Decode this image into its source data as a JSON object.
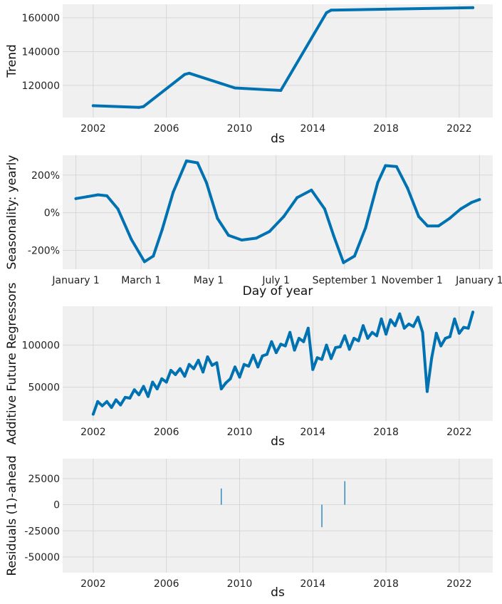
{
  "colors": {
    "series": "#0072b2",
    "background": "#f0f0f0",
    "grid": "#d4d4d4"
  },
  "chart_data": [
    {
      "type": "line",
      "title": "",
      "xlabel": "ds",
      "ylabel": "Trend",
      "grid": true,
      "x_type": "date",
      "xlim": [
        "2000-05-01",
        "2023-11-01"
      ],
      "ylim": [
        101000,
        168000
      ],
      "x_ticks": [
        {
          "value": "2002-01-01",
          "label": "2002"
        },
        {
          "value": "2006-01-01",
          "label": "2006"
        },
        {
          "value": "2010-01-01",
          "label": "2010"
        },
        {
          "value": "2014-01-01",
          "label": "2014"
        },
        {
          "value": "2018-01-01",
          "label": "2018"
        },
        {
          "value": "2022-01-01",
          "label": "2022"
        }
      ],
      "y_ticks": [
        {
          "value": 120000,
          "label": "120000"
        },
        {
          "value": 140000,
          "label": "140000"
        },
        {
          "value": 160000,
          "label": "160000"
        }
      ],
      "series": [
        {
          "x": [
            "2002-01-01",
            "2004-07-01",
            "2004-10-01",
            "2007-01-01",
            "2007-04-01",
            "2009-10-01",
            "2012-04-01",
            "2014-10-01",
            "2015-01-01",
            "2022-10-01"
          ],
          "values": [
            108000,
            107000,
            107500,
            126500,
            127200,
            118500,
            117000,
            163000,
            164500,
            166000
          ]
        }
      ]
    },
    {
      "type": "line",
      "title": "",
      "xlabel": "Day of year",
      "ylabel": "Seasonality: yearly",
      "grid": true,
      "x_unit": "day of year",
      "xlim": [
        -12,
        377
      ],
      "ylim": [
        -3.0,
        3.05
      ],
      "x_ticks": [
        {
          "value": 0,
          "label": "January 1"
        },
        {
          "value": 59,
          "label": "March 1"
        },
        {
          "value": 120,
          "label": "May 1"
        },
        {
          "value": 181,
          "label": "July 1"
        },
        {
          "value": 243,
          "label": "September 1"
        },
        {
          "value": 304,
          "label": "November 1"
        },
        {
          "value": 365,
          "label": "January 1"
        }
      ],
      "y_ticks": [
        {
          "value": -2,
          "label": "-200%"
        },
        {
          "value": 0,
          "label": "0%"
        },
        {
          "value": 2,
          "label": "200%"
        }
      ],
      "series": [
        {
          "x": [
            0,
            10,
            20,
            28,
            38,
            50,
            62,
            70,
            78,
            88,
            100,
            110,
            118,
            128,
            138,
            150,
            163,
            175,
            188,
            200,
            213,
            225,
            233,
            242,
            252,
            262,
            273,
            280,
            290,
            300,
            310,
            318,
            328,
            338,
            348,
            358,
            365
          ],
          "values": [
            0.75,
            0.85,
            0.95,
            0.9,
            0.2,
            -1.4,
            -2.6,
            -2.3,
            -0.9,
            1.1,
            2.75,
            2.65,
            1.6,
            -0.3,
            -1.2,
            -1.45,
            -1.35,
            -1.0,
            -0.2,
            0.8,
            1.2,
            0.2,
            -1.2,
            -2.65,
            -2.3,
            -0.8,
            1.6,
            2.5,
            2.45,
            1.3,
            -0.2,
            -0.7,
            -0.7,
            -0.3,
            0.2,
            0.55,
            0.7
          ]
        }
      ]
    },
    {
      "type": "line",
      "title": "",
      "xlabel": "ds",
      "ylabel": "Additive Future Regressors",
      "grid": true,
      "x_type": "date",
      "xlim": [
        "2000-05-01",
        "2023-11-01"
      ],
      "ylim": [
        10000,
        146000
      ],
      "x_ticks": [
        {
          "value": "2002-01-01",
          "label": "2002"
        },
        {
          "value": "2006-01-01",
          "label": "2006"
        },
        {
          "value": "2010-01-01",
          "label": "2010"
        },
        {
          "value": "2014-01-01",
          "label": "2014"
        },
        {
          "value": "2018-01-01",
          "label": "2018"
        },
        {
          "value": "2022-01-01",
          "label": "2022"
        }
      ],
      "y_ticks": [
        {
          "value": 50000,
          "label": "50000"
        },
        {
          "value": 100000,
          "label": "100000"
        }
      ],
      "series": [
        {
          "x": [
            "2002-01-01",
            "2002-04-01",
            "2002-07-01",
            "2002-10-01",
            "2003-01-01",
            "2003-04-01",
            "2003-07-01",
            "2003-10-01",
            "2004-01-01",
            "2004-04-01",
            "2004-07-01",
            "2004-10-01",
            "2005-01-01",
            "2005-04-01",
            "2005-07-01",
            "2005-10-01",
            "2006-01-01",
            "2006-04-01",
            "2006-07-01",
            "2006-10-01",
            "2007-01-01",
            "2007-04-01",
            "2007-07-01",
            "2007-10-01",
            "2008-01-01",
            "2008-04-01",
            "2008-07-01",
            "2008-10-01",
            "2009-01-01",
            "2009-04-01",
            "2009-07-01",
            "2009-10-01",
            "2010-01-01",
            "2010-04-01",
            "2010-07-01",
            "2010-10-01",
            "2011-01-01",
            "2011-04-01",
            "2011-07-01",
            "2011-10-01",
            "2012-01-01",
            "2012-04-01",
            "2012-07-01",
            "2012-10-01",
            "2013-01-01",
            "2013-04-01",
            "2013-07-01",
            "2013-10-01",
            "2014-01-01",
            "2014-04-01",
            "2014-07-01",
            "2014-10-01",
            "2015-01-01",
            "2015-04-01",
            "2015-07-01",
            "2015-10-01",
            "2016-01-01",
            "2016-04-01",
            "2016-07-01",
            "2016-10-01",
            "2017-01-01",
            "2017-04-01",
            "2017-07-01",
            "2017-10-01",
            "2018-01-01",
            "2018-04-01",
            "2018-07-01",
            "2018-10-01",
            "2019-01-01",
            "2019-04-01",
            "2019-07-01",
            "2019-10-01",
            "2020-01-01",
            "2020-04-01",
            "2020-07-01",
            "2020-10-01",
            "2021-01-01",
            "2021-04-01",
            "2021-07-01",
            "2021-10-01",
            "2022-01-01",
            "2022-04-01",
            "2022-07-01",
            "2022-10-01"
          ],
          "values": [
            18000,
            33000,
            28000,
            33000,
            26000,
            35000,
            29000,
            38000,
            37000,
            47000,
            41000,
            51000,
            39000,
            56000,
            48000,
            60000,
            56000,
            70000,
            65000,
            72000,
            63000,
            77000,
            72000,
            82000,
            68000,
            86000,
            76000,
            79000,
            48000,
            55000,
            60000,
            74000,
            62000,
            77000,
            75000,
            88000,
            74000,
            87000,
            89000,
            104000,
            91000,
            101000,
            99000,
            115000,
            94000,
            108000,
            104000,
            120000,
            71000,
            85000,
            83000,
            100000,
            84000,
            97000,
            98000,
            111000,
            95000,
            108000,
            105000,
            123000,
            108000,
            115000,
            111000,
            131000,
            113000,
            130000,
            123000,
            137000,
            120000,
            125000,
            122000,
            133000,
            115000,
            45000,
            85000,
            114000,
            99000,
            108000,
            110000,
            131000,
            114000,
            121000,
            120000,
            139000
          ]
        }
      ]
    },
    {
      "type": "bar",
      "title": "",
      "xlabel": "ds",
      "ylabel": "Residuals (1)-ahead",
      "grid": true,
      "x_type": "date",
      "xlim": [
        "2000-05-01",
        "2023-11-01"
      ],
      "ylim": [
        -65000,
        44000
      ],
      "x_ticks": [
        {
          "value": "2002-01-01",
          "label": "2002"
        },
        {
          "value": "2006-01-01",
          "label": "2006"
        },
        {
          "value": "2010-01-01",
          "label": "2010"
        },
        {
          "value": "2014-01-01",
          "label": "2014"
        },
        {
          "value": "2018-01-01",
          "label": "2018"
        },
        {
          "value": "2022-01-01",
          "label": "2022"
        }
      ],
      "y_ticks": [
        {
          "value": -50000,
          "label": "-50000"
        },
        {
          "value": -25000,
          "label": "-25000"
        },
        {
          "value": 0,
          "label": "0"
        },
        {
          "value": 25000,
          "label": "25000"
        }
      ],
      "series": [
        {
          "x": [
            "2009-01-01",
            "2014-07-01",
            "2015-10-01"
          ],
          "values": [
            15500,
            -21500,
            22500
          ]
        }
      ]
    }
  ]
}
